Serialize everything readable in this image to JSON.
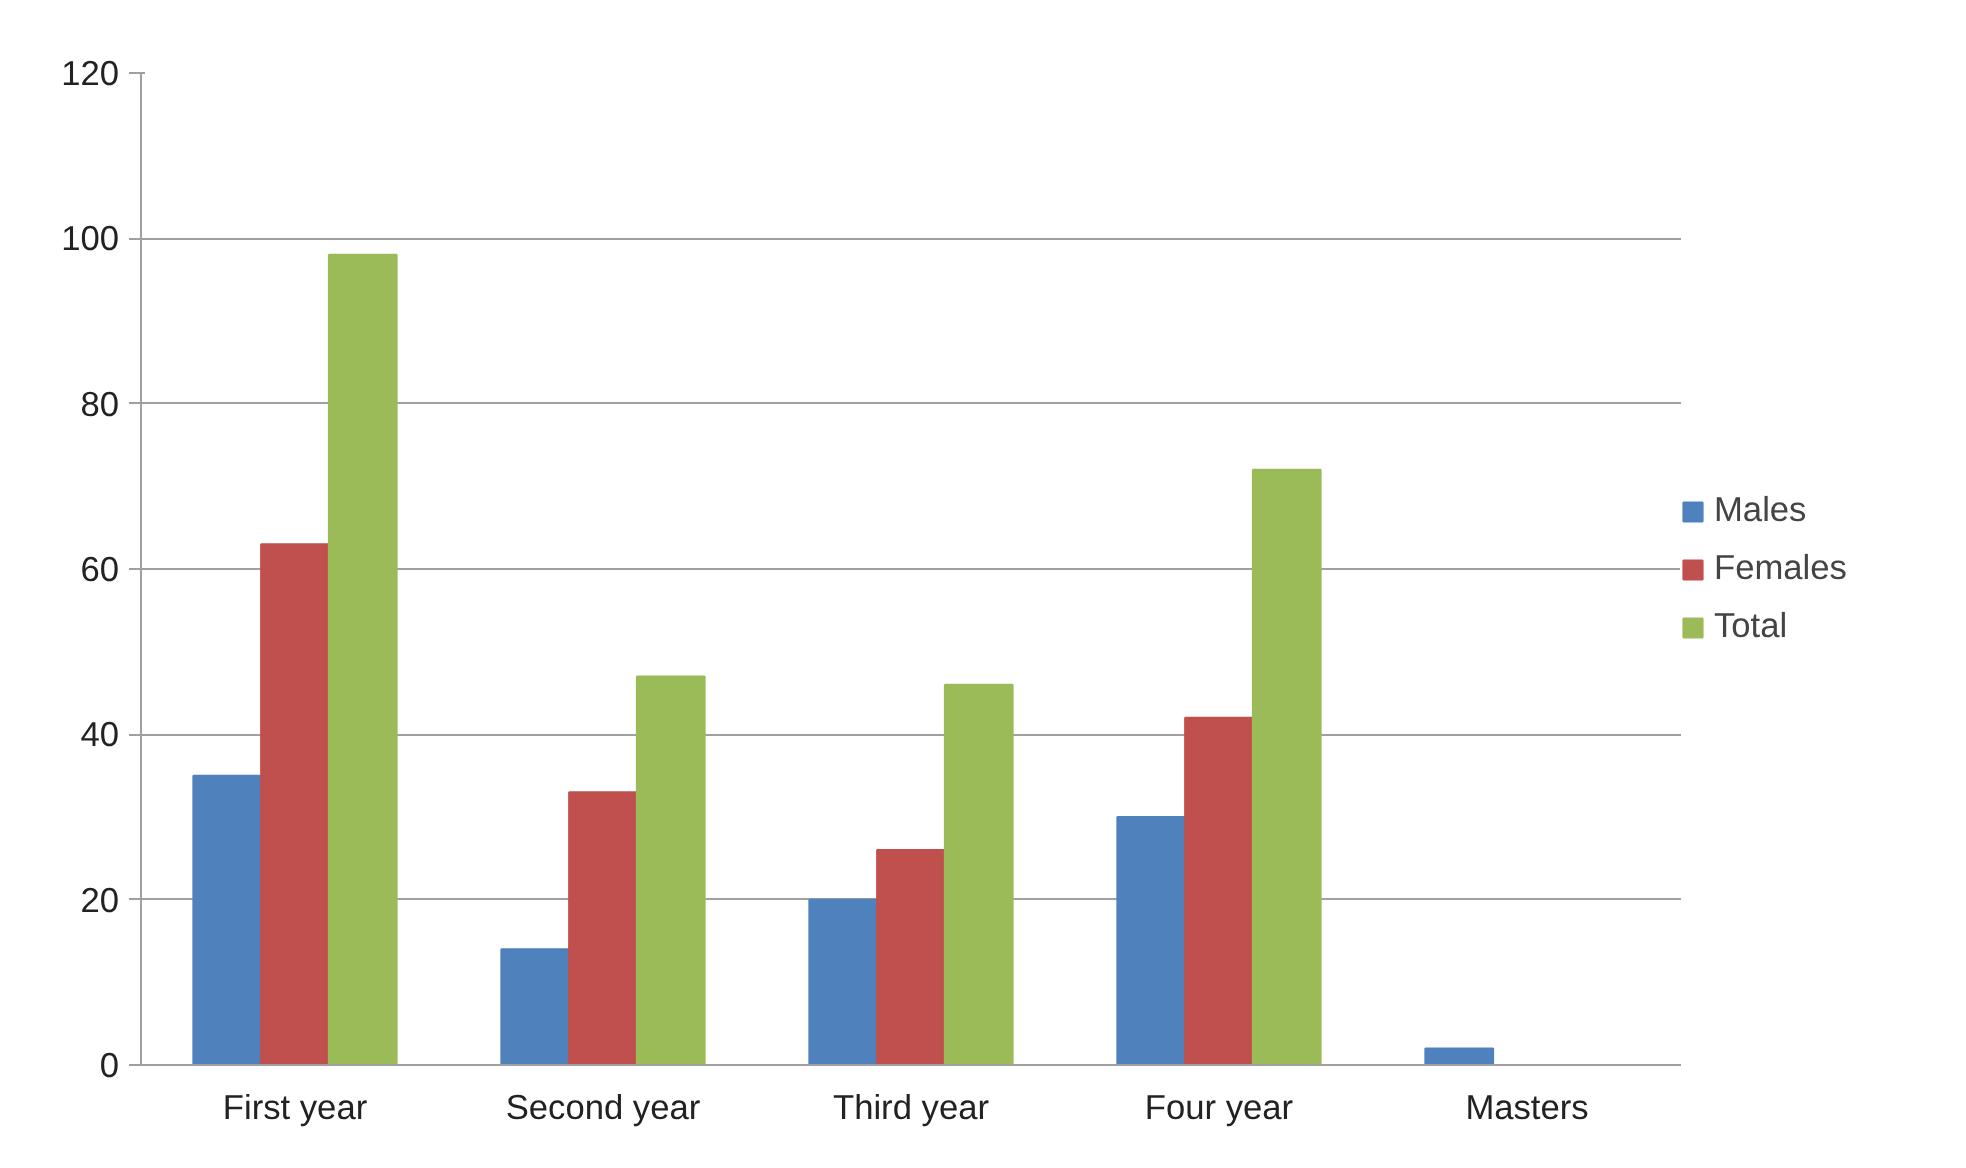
{
  "chart_data": {
    "type": "bar",
    "categories": [
      "First year",
      "Second year",
      "Third year",
      "Four year",
      "Masters"
    ],
    "series": [
      {
        "name": "Males",
        "color": "#4f81bd",
        "values": [
          35,
          14,
          20,
          30,
          2
        ]
      },
      {
        "name": "Females",
        "color": "#c0504d",
        "values": [
          63,
          33,
          26,
          42,
          0
        ]
      },
      {
        "name": "Total",
        "color": "#9bbb59",
        "values": [
          98,
          47,
          46,
          72,
          0
        ]
      }
    ],
    "ylim": [
      0,
      120
    ],
    "yticks": [
      0,
      20,
      40,
      60,
      80,
      100,
      120
    ],
    "grid": "y",
    "legend": "right"
  }
}
